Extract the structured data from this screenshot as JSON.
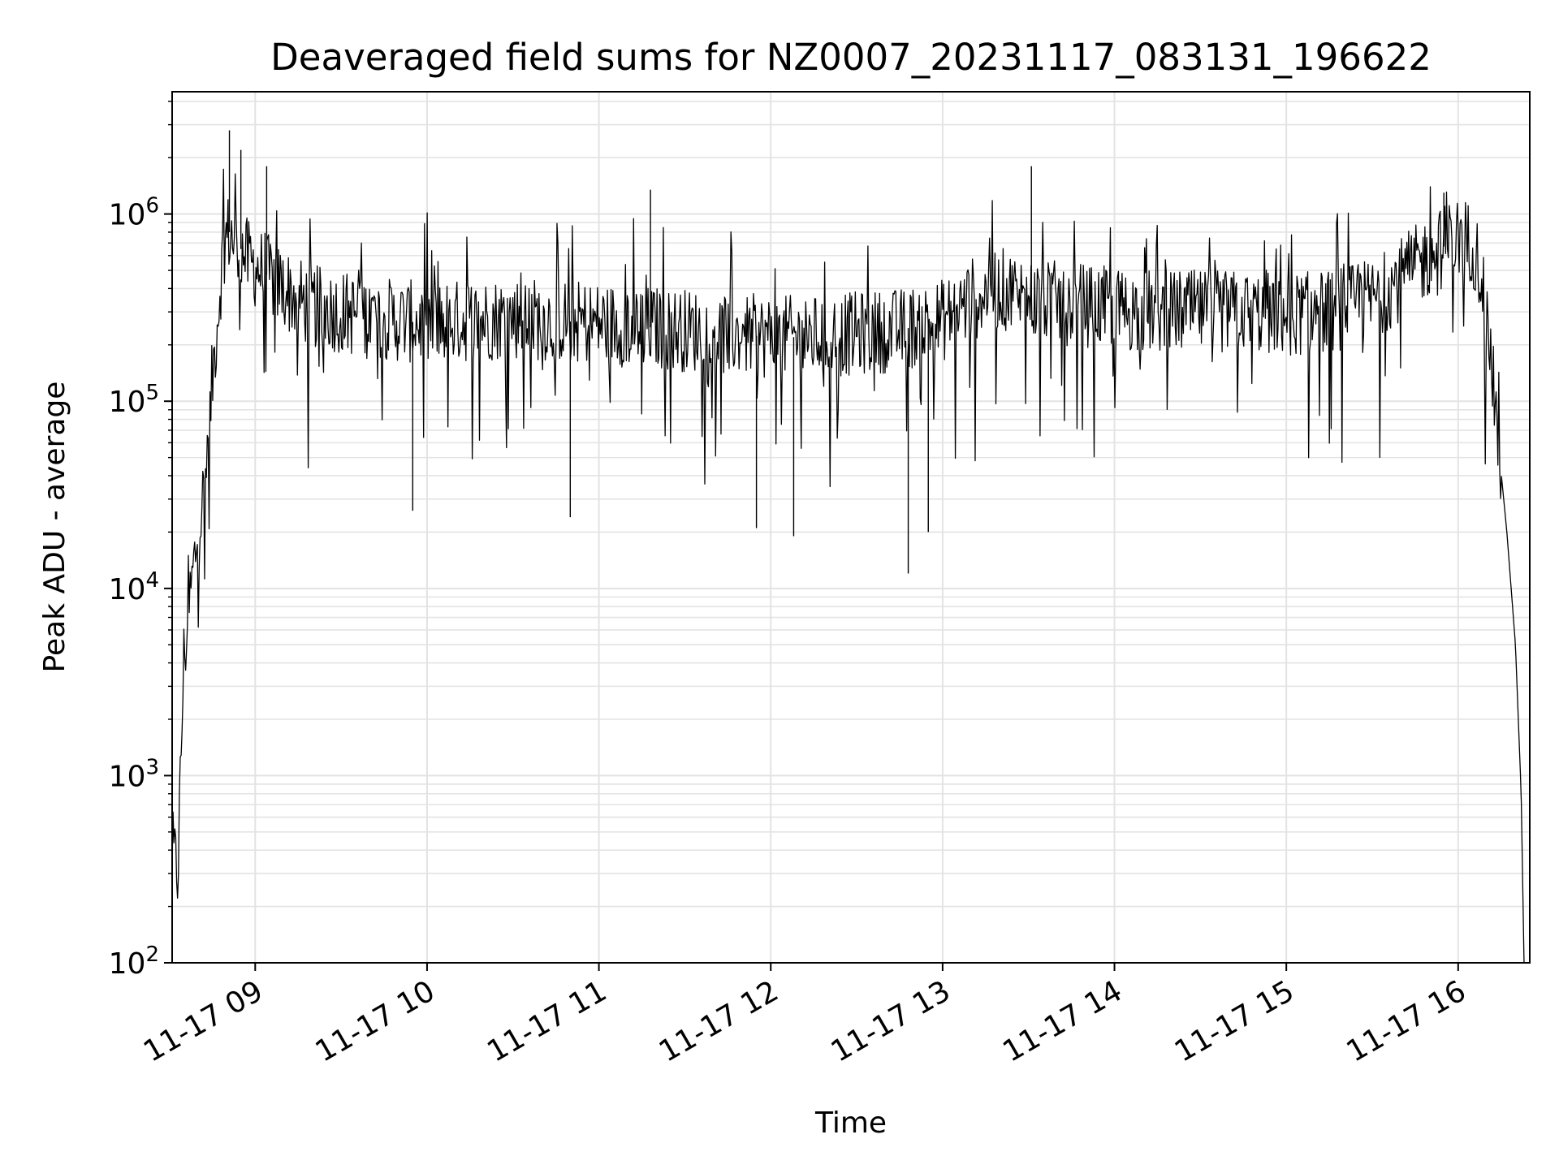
{
  "chart_data": {
    "type": "line",
    "title": "Deaveraged field sums for NZ0007_20231117_083131_196622",
    "xlabel": "Time",
    "ylabel": "Peak ADU - average",
    "yscale": "log",
    "ylim": [
      100,
      4500000
    ],
    "xlim": [
      "2023-11-17 08:31",
      "2023-11-17 16:25"
    ],
    "grid": true,
    "line_color": "#000000",
    "x_ticks": [
      "11-17 09",
      "11-17 10",
      "11-17 11",
      "11-17 12",
      "11-17 13",
      "11-17 14",
      "11-17 15",
      "11-17 16"
    ],
    "y_ticks": [
      {
        "base": "10",
        "exp": "2"
      },
      {
        "base": "10",
        "exp": "3"
      },
      {
        "base": "10",
        "exp": "4"
      },
      {
        "base": "10",
        "exp": "5"
      },
      {
        "base": "10",
        "exp": "6"
      }
    ],
    "series": [
      {
        "x": [
          "2023-11-17 08:31",
          "2023-11-17 08:33",
          "2023-11-17 08:35",
          "2023-11-17 08:37",
          "2023-11-17 08:39",
          "2023-11-17 08:41",
          "2023-11-17 08:43",
          "2023-11-17 08:45",
          "2023-11-17 08:47",
          "2023-11-17 08:49",
          "2023-11-17 08:51",
          "2023-11-17 08:53",
          "2023-11-17 08:55",
          "2023-11-17 08:58",
          "2023-11-17 09:02",
          "2023-11-17 09:06",
          "2023-11-17 09:10",
          "2023-11-17 09:15",
          "2023-11-17 09:20",
          "2023-11-17 09:30",
          "2023-11-17 09:40",
          "2023-11-17 09:50",
          "2023-11-17 10:00",
          "2023-11-17 10:15",
          "2023-11-17 10:30",
          "2023-11-17 10:45",
          "2023-11-17 11:00",
          "2023-11-17 11:15",
          "2023-11-17 11:30",
          "2023-11-17 11:45",
          "2023-11-17 12:00",
          "2023-11-17 12:15",
          "2023-11-17 12:30",
          "2023-11-17 12:45",
          "2023-11-17 13:00",
          "2023-11-17 13:10",
          "2023-11-17 13:20",
          "2023-11-17 13:30",
          "2023-11-17 13:45",
          "2023-11-17 14:00",
          "2023-11-17 14:15",
          "2023-11-17 14:30",
          "2023-11-17 14:45",
          "2023-11-17 15:00",
          "2023-11-17 15:15",
          "2023-11-17 15:30",
          "2023-11-17 15:40",
          "2023-11-17 15:50",
          "2023-11-17 16:00",
          "2023-11-17 16:05",
          "2023-11-17 16:08",
          "2023-11-17 16:11",
          "2023-11-17 16:14",
          "2023-11-17 16:17",
          "2023-11-17 16:20",
          "2023-11-17 16:22",
          "2023-11-17 16:23"
        ],
        "y": [
          400,
          300,
          4000,
          8000,
          15000,
          25000,
          40000,
          130000,
          300000,
          700000,
          800000,
          700000,
          650000,
          550000,
          500000,
          450000,
          400000,
          350000,
          320000,
          300000,
          280000,
          270000,
          260000,
          270000,
          280000,
          270000,
          260000,
          250000,
          240000,
          230000,
          220000,
          220000,
          230000,
          240000,
          270000,
          350000,
          400000,
          350000,
          330000,
          310000,
          300000,
          300000,
          300000,
          290000,
          300000,
          350000,
          450000,
          600000,
          750000,
          700000,
          500000,
          200000,
          60000,
          20000,
          5000,
          800,
          100
        ]
      }
    ],
    "annotations": [
      {
        "x": "2023-11-17 08:51",
        "y": 2800000
      },
      {
        "x": "2023-11-17 08:55",
        "y": 2200000
      },
      {
        "x": "2023-11-17 09:04",
        "y": 1800000
      },
      {
        "x": "2023-11-17 11:18",
        "y": 1350000
      },
      {
        "x": "2023-11-17 13:31",
        "y": 1800000
      },
      {
        "x": "2023-11-17 15:55",
        "y": 1300000
      },
      {
        "x": "2023-11-17 09:55",
        "y": 26000
      },
      {
        "x": "2023-11-17 10:50",
        "y": 24000
      },
      {
        "x": "2023-11-17 11:55",
        "y": 21000
      },
      {
        "x": "2023-11-17 12:08",
        "y": 19000
      },
      {
        "x": "2023-11-17 12:48",
        "y": 12000
      },
      {
        "x": "2023-11-17 12:55",
        "y": 20000
      }
    ]
  }
}
